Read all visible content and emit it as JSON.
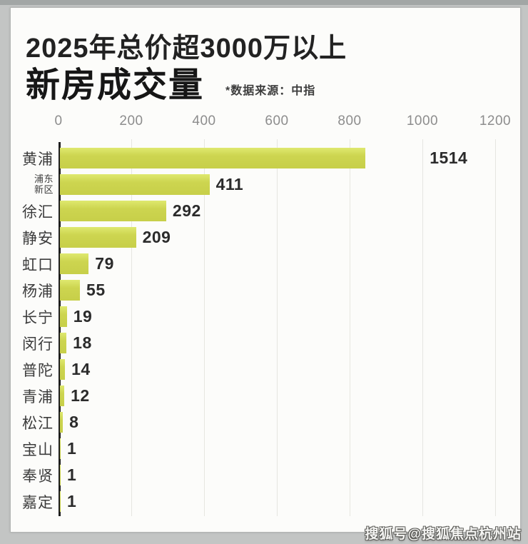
{
  "header": {
    "title_line1": "2025年总价超3000万以上",
    "title_line2": "新房成交量",
    "source_note": "*数据来源：中指"
  },
  "page": {
    "watermark": "搜狐号@搜狐焦点杭州站"
  },
  "chart_data": {
    "type": "bar",
    "orientation": "horizontal",
    "title": "2025年总价超3000万以上新房成交量",
    "source": "*数据来源：中指",
    "xlabel": "",
    "ylabel": "",
    "xlim": [
      0,
      1200
    ],
    "x_ticks": [
      0,
      200,
      400,
      600,
      800,
      1000,
      1200
    ],
    "grid": true,
    "categories": [
      "黄浦",
      "浦东新区",
      "徐汇",
      "静安",
      "虹口",
      "杨浦",
      "长宁",
      "闵行",
      "普陀",
      "青浦",
      "松江",
      "宝山",
      "奉贤",
      "嘉定"
    ],
    "values": [
      1514,
      411,
      292,
      209,
      79,
      55,
      19,
      18,
      14,
      12,
      8,
      1,
      1,
      1
    ],
    "display_note": "黄浦 bar is drawn clipped at ~840 axis units although its data label reads 1514",
    "bars": [
      {
        "label": "黄浦",
        "label_lines": [
          "黄浦"
        ],
        "value": "1514",
        "bar_units": 840,
        "label_units": 1020
      },
      {
        "label": "浦东新区",
        "label_lines": [
          "浦东",
          "新区"
        ],
        "value": "411",
        "bar_units": 411
      },
      {
        "label": "徐汇",
        "label_lines": [
          "徐汇"
        ],
        "value": "292",
        "bar_units": 292
      },
      {
        "label": "静安",
        "label_lines": [
          "静安"
        ],
        "value": "209",
        "bar_units": 209
      },
      {
        "label": "虹口",
        "label_lines": [
          "虹口"
        ],
        "value": "79",
        "bar_units": 79
      },
      {
        "label": "杨浦",
        "label_lines": [
          "杨浦"
        ],
        "value": "55",
        "bar_units": 55
      },
      {
        "label": "长宁",
        "label_lines": [
          "长宁"
        ],
        "value": "19",
        "bar_units": 19
      },
      {
        "label": "闵行",
        "label_lines": [
          "闵行"
        ],
        "value": "18",
        "bar_units": 18
      },
      {
        "label": "普陀",
        "label_lines": [
          "普陀"
        ],
        "value": "14",
        "bar_units": 14
      },
      {
        "label": "青浦",
        "label_lines": [
          "青浦"
        ],
        "value": "12",
        "bar_units": 12
      },
      {
        "label": "松江",
        "label_lines": [
          "松江"
        ],
        "value": "8",
        "bar_units": 8
      },
      {
        "label": "宝山",
        "label_lines": [
          "宝山"
        ],
        "value": "1",
        "bar_units": 1
      },
      {
        "label": "奉贤",
        "label_lines": [
          "奉贤"
        ],
        "value": "1",
        "bar_units": 1
      },
      {
        "label": "嘉定",
        "label_lines": [
          "嘉定"
        ],
        "value": "1",
        "bar_units": 1
      }
    ],
    "colors": {
      "bar": "#cbd34e",
      "bar_highlight": "#dfe96f",
      "axis": "#1f1f1f",
      "grid": "#e6e6e1",
      "tick_text": "#8d8d8d",
      "category_text": "#3c3c3c",
      "value_text": "#2b2b2b",
      "card_background": "#fcfcfa",
      "page_background": "#c3c5c4"
    },
    "legend": null
  }
}
